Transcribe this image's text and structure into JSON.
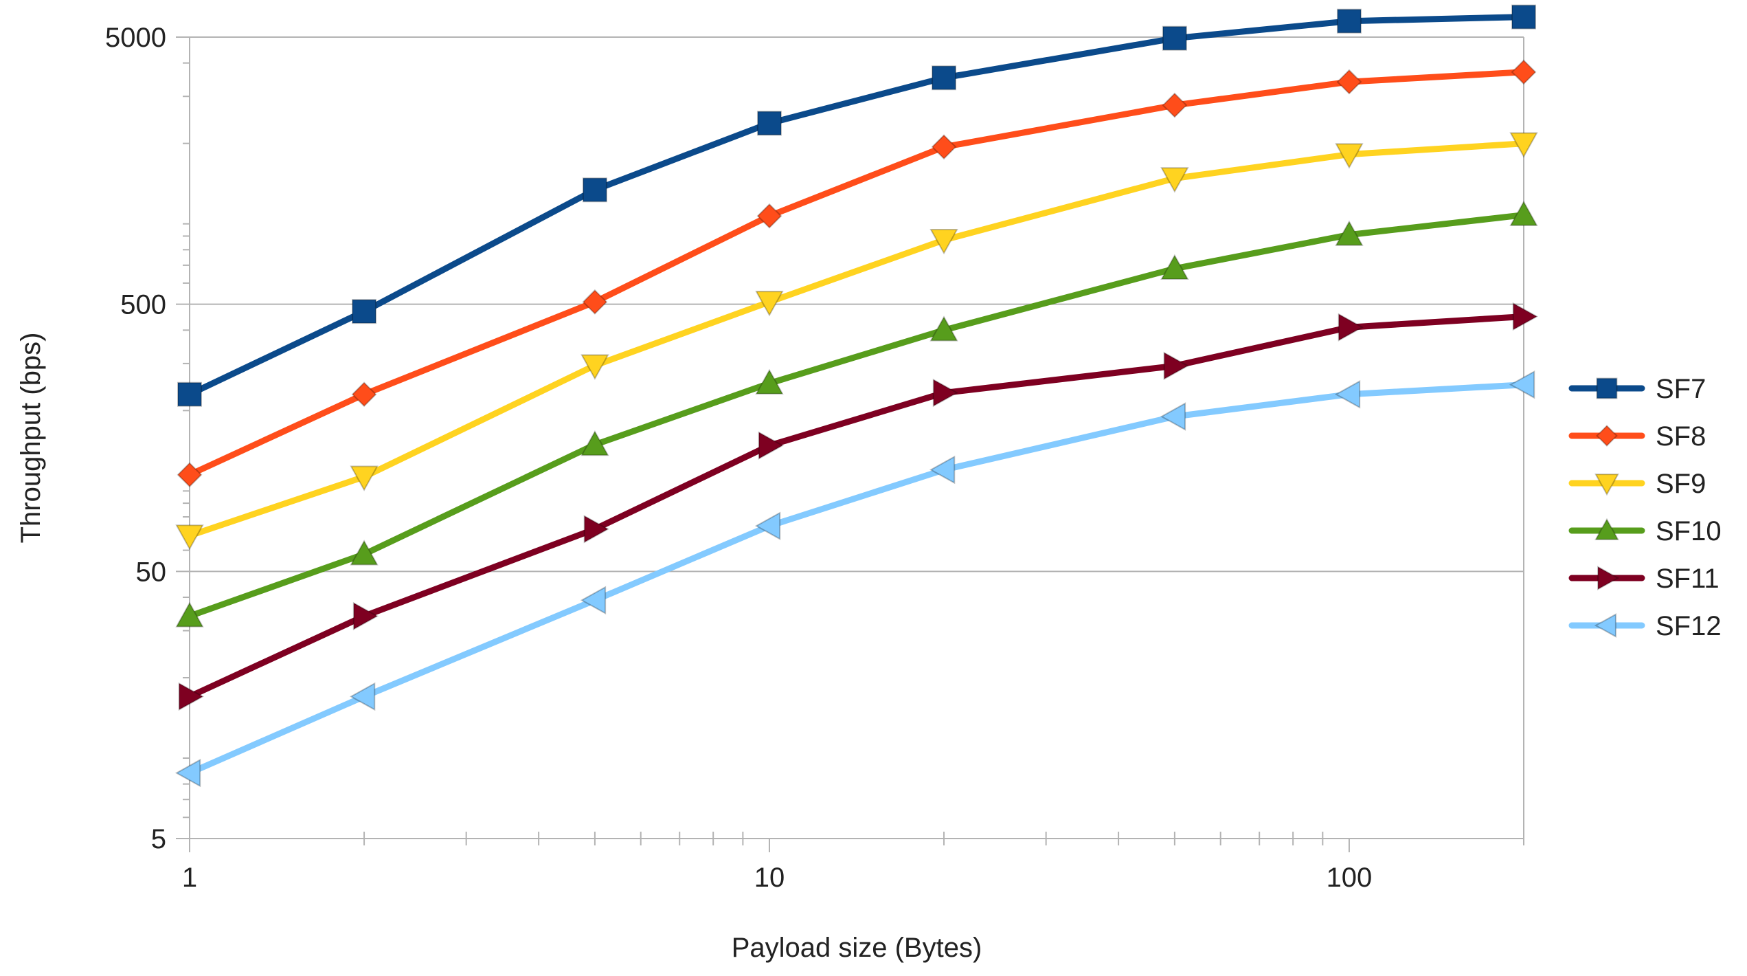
{
  "chart_data": {
    "type": "line",
    "title": "",
    "xlabel": "Payload size (Bytes)",
    "ylabel": "Throughput (bps)",
    "xscale": "log",
    "yscale": "log",
    "xlim": [
      1,
      200
    ],
    "ylim": [
      5,
      5000
    ],
    "x_ticks": [
      1,
      10,
      100
    ],
    "x_tick_labels": [
      "1",
      "10",
      "100"
    ],
    "y_ticks": [
      5,
      50,
      500,
      5000
    ],
    "y_tick_labels": [
      "5",
      "50",
      "500",
      "5000"
    ],
    "grid": "major y",
    "legend_position": "right",
    "x": [
      1,
      2,
      5,
      10,
      20,
      50,
      100,
      200
    ],
    "series": [
      {
        "name": "SF7",
        "color": "#0b4a8b",
        "marker": "square",
        "values": [
          230,
          470,
          1340,
          2380,
          3520,
          4950,
          5740,
          5950
        ]
      },
      {
        "name": "SF8",
        "color": "#ff4d1a",
        "marker": "diamond",
        "values": [
          115,
          230,
          510,
          1070,
          1940,
          2780,
          3400,
          3700
        ]
      },
      {
        "name": "SF9",
        "color": "#ffd320",
        "marker": "triangle-down",
        "values": [
          68,
          113,
          295,
          510,
          870,
          1480,
          1820,
          2000
        ]
      },
      {
        "name": "SF10",
        "color": "#579d1c",
        "marker": "triangle-up",
        "values": [
          34,
          58,
          149,
          253,
          400,
          680,
          910,
          1080
        ]
      },
      {
        "name": "SF11",
        "color": "#7e0021",
        "marker": "triangle-right",
        "values": [
          17,
          34,
          72,
          148,
          233,
          294,
          410,
          450
        ]
      },
      {
        "name": "SF12",
        "color": "#83caff",
        "marker": "triangle-left",
        "values": [
          8.8,
          17,
          39,
          74,
          120,
          190,
          230,
          250
        ]
      }
    ]
  }
}
